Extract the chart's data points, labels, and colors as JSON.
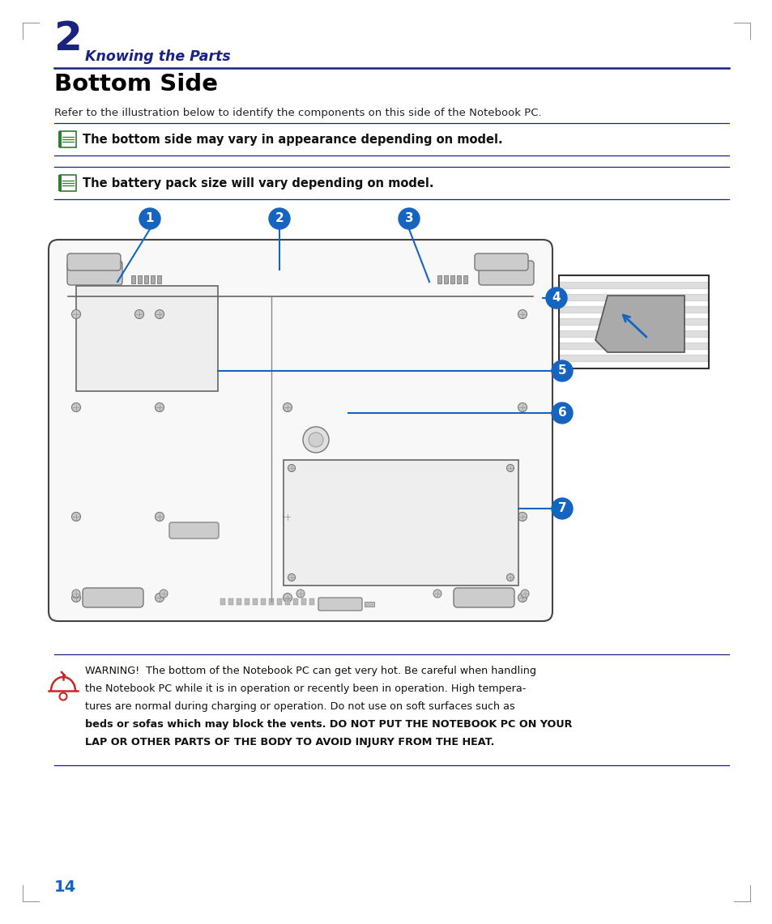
{
  "page_bg": "#ffffff",
  "chapter_num": "2",
  "chapter_title": "Knowing the Parts",
  "section_title": "Bottom Side",
  "intro_text": "Refer to the illustration below to identify the components on this side of the Notebook PC.",
  "note1": "The bottom side may vary in appearance depending on model.",
  "note2": "The battery pack size will vary depending on model.",
  "warning_line1": "WARNING!  The bottom of the Notebook PC can get very hot. Be careful when handling",
  "warning_line2": "the Notebook PC while it is in operation or recently been in operation. High tempera-",
  "warning_line3": "tures are normal during charging or operation. Do not use on soft surfaces such as",
  "warning_line4": "beds or sofas which may block the vents. DO NOT PUT THE NOTEBOOK PC ON YOUR",
  "warning_line5": "LAP OR OTHER PARTS OF THE BODY TO AVOID INJURY FROM THE HEAT.",
  "page_num": "14",
  "line_color": "#1a237e",
  "dark_blue": "#1a237e",
  "callout_blue": "#1565c0",
  "note_green": "#2e7d32",
  "warn_red": "#c62828",
  "gray_dark": "#444444",
  "gray_mid": "#888888",
  "gray_light": "#dddddd",
  "gray_body": "#f8f8f8"
}
